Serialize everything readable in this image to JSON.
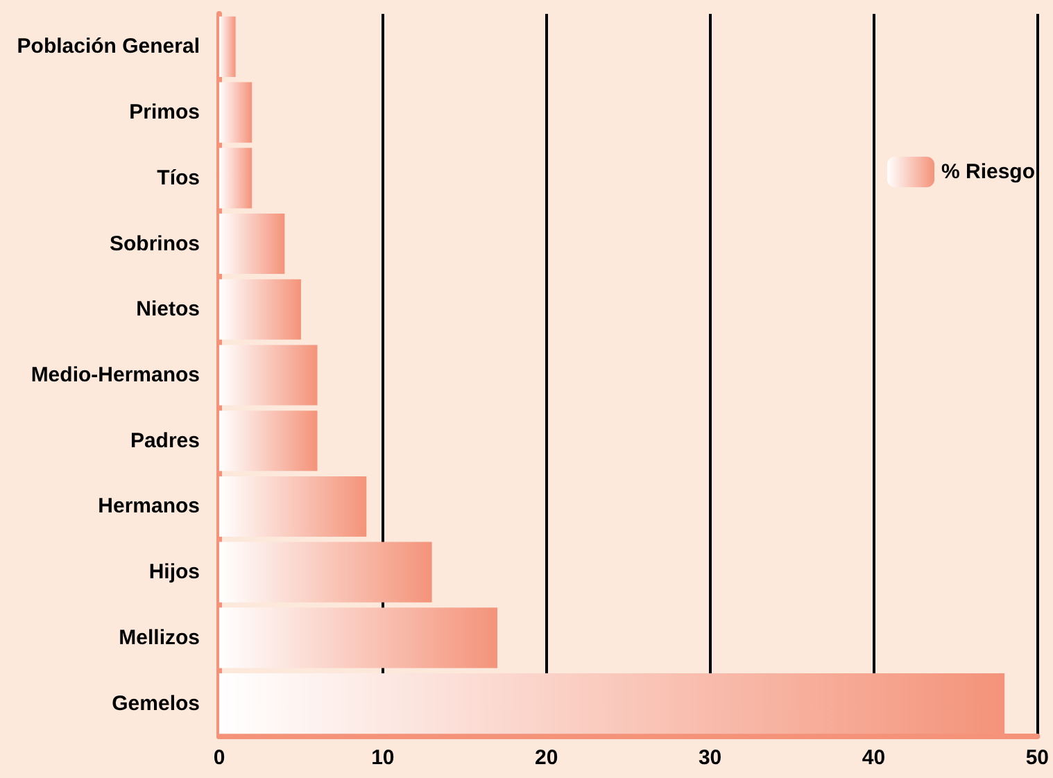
{
  "chart_data": {
    "type": "bar",
    "orientation": "horizontal",
    "categories": [
      "Población General",
      "Primos",
      "Tíos",
      "Sobrinos",
      "Nietos",
      "Medio-Hermanos",
      "Padres",
      "Hermanos",
      "Hijos",
      "Mellizos",
      "Gemelos"
    ],
    "series": [
      {
        "name": "% Riesgo",
        "color": "#f4937a",
        "values": [
          1,
          2,
          2,
          4,
          5,
          6,
          6,
          9,
          13,
          17,
          48
        ]
      }
    ],
    "xlim": [
      0,
      50
    ],
    "xticks": [
      0,
      10,
      20,
      30,
      40,
      50
    ],
    "grid": "x",
    "legend": "top right"
  }
}
